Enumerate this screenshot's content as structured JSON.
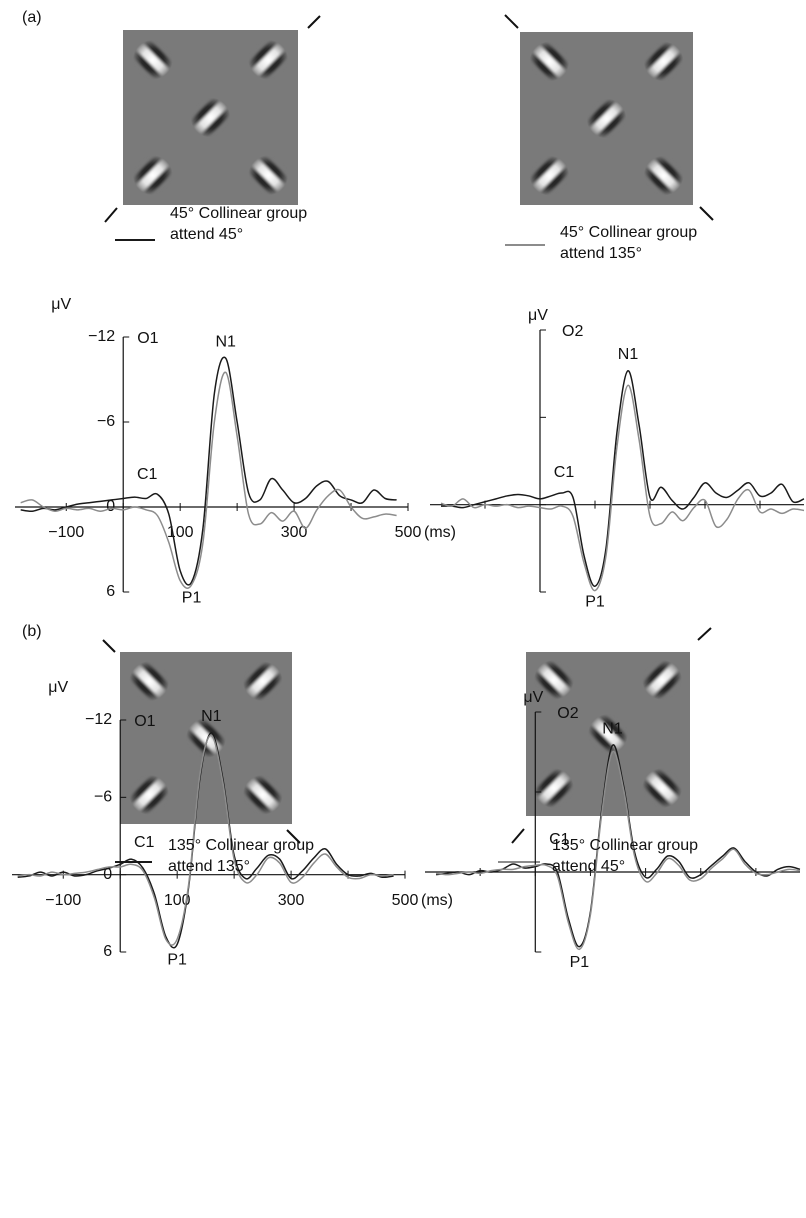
{
  "panel_labels": [
    "(a)",
    "(b)"
  ],
  "chart_data": [
    {
      "type": "line",
      "y_label": "μV",
      "channel": "O1",
      "annotations": [
        "N1",
        "C1",
        "P1"
      ],
      "x_label": "(ms)",
      "x": [
        -180,
        -160,
        -140,
        -120,
        -100,
        -80,
        -60,
        -40,
        -20,
        0,
        20,
        40,
        60,
        80,
        100,
        120,
        140,
        160,
        180,
        200,
        220,
        240,
        260,
        280,
        300,
        320,
        340,
        360,
        380,
        400,
        420,
        440,
        460,
        480
      ],
      "xlim": [
        -190,
        500
      ],
      "xticks": [
        {
          "value": -100,
          "label": "−100"
        },
        100,
        300,
        500
      ],
      "xtick_marks": [
        -100,
        0,
        100,
        200,
        300,
        400,
        500
      ],
      "ylim": [
        6,
        -12
      ],
      "yticks": [
        {
          "value": -12,
          "label": "−12"
        },
        {
          "value": -6,
          "label": "−6"
        },
        0,
        6
      ],
      "series": [
        {
          "name": "45° Collinear group\nattend 45°",
          "color": "#1a1a1a",
          "values": [
            0.2,
            0.3,
            0.1,
            0.2,
            0.0,
            -0.2,
            -0.3,
            -0.4,
            -0.5,
            -0.6,
            -0.7,
            -0.6,
            -0.9,
            0.5,
            4.5,
            5.3,
            1.5,
            -8,
            -10.5,
            -6,
            -1,
            -0.5,
            -2.0,
            -1.2,
            -0.3,
            -0.6,
            -1.5,
            -1.8,
            -0.8,
            -0.5,
            -0.3,
            -1.2,
            -0.6,
            -0.5
          ]
        },
        {
          "name": "45° Collinear group\nattend 135°",
          "color": "#8c8c8c",
          "values": [
            -0.3,
            -0.5,
            0,
            0.3,
            0.1,
            0.2,
            0.1,
            0.3,
            0.1,
            0.2,
            0,
            0.2,
            0.6,
            2.5,
            5.2,
            5.5,
            2.5,
            -6,
            -9.5,
            -5,
            0.5,
            1.2,
            0.4,
            1.0,
            0.3,
            1.5,
            0.2,
            -0.8,
            -1.2,
            0,
            0.8,
            0.7,
            0.5,
            0.6
          ]
        }
      ]
    },
    {
      "type": "line",
      "y_label": "μV",
      "channel": "O2",
      "annotations": [
        "N1",
        "C1",
        "P1"
      ],
      "x": [
        -180,
        -160,
        -140,
        -120,
        -100,
        -80,
        -60,
        -40,
        -20,
        0,
        20,
        40,
        60,
        80,
        100,
        120,
        140,
        160,
        180,
        200,
        220,
        240,
        260,
        280,
        300,
        320,
        340,
        360,
        380,
        400,
        420,
        440,
        460,
        480
      ],
      "xlim": [
        -200,
        480
      ],
      "xtick_marks": [
        -100,
        0,
        100,
        200,
        300,
        400
      ],
      "ylim": [
        6,
        -12
      ],
      "ytick_marks": [
        -12,
        -6,
        0,
        6
      ],
      "series": [
        {
          "color": "#1a1a1a",
          "values": [
            0.1,
            0.1,
            0.2,
            0,
            -0.2,
            -0.4,
            -0.6,
            -0.7,
            -0.6,
            -0.4,
            -0.6,
            -0.8,
            -0.5,
            3.5,
            5.6,
            3.0,
            -5,
            -9.2,
            -5.5,
            -0.5,
            -1.2,
            -0.3,
            0.3,
            -0.5,
            -1.5,
            -0.8,
            -0.5,
            -1.0,
            -1.5,
            -0.6,
            -0.8,
            -1.4,
            -0.2,
            -0.4
          ]
        },
        {
          "color": "#8c8c8c",
          "values": [
            -0.1,
            0.1,
            -0.4,
            0.2,
            0,
            0.1,
            0,
            0.2,
            0.1,
            0.2,
            0.3,
            0.1,
            0.8,
            4.0,
            5.9,
            3.5,
            -4,
            -8.2,
            -4.5,
            0.8,
            1.3,
            0.5,
            1.1,
            0.2,
            -0.3,
            1.5,
            1.0,
            -0.4,
            -1.0,
            0.5,
            0.3,
            0.6,
            0.3,
            0.4
          ]
        }
      ]
    },
    {
      "type": "line",
      "y_label": "μV",
      "channel": "O1",
      "annotations": [
        "N1",
        "C1",
        "P1"
      ],
      "x_label": "(ms)",
      "x": [
        -180,
        -160,
        -140,
        -120,
        -100,
        -80,
        -60,
        -40,
        -20,
        0,
        20,
        40,
        60,
        80,
        100,
        120,
        140,
        160,
        180,
        200,
        220,
        240,
        260,
        280,
        300,
        320,
        340,
        360,
        380,
        400,
        420,
        440,
        460,
        480
      ],
      "xlim": [
        -190,
        500
      ],
      "xticks": [
        {
          "value": -100,
          "label": "−100"
        },
        100,
        300,
        500
      ],
      "xtick_marks": [
        -100,
        0,
        100,
        200,
        300,
        400,
        500
      ],
      "ylim": [
        6,
        -12
      ],
      "yticks": [
        {
          "value": -12,
          "label": "−12"
        },
        {
          "value": -6,
          "label": "−6"
        },
        0,
        6
      ],
      "series": [
        {
          "name": "135° Collinear group\nattend 135°",
          "color": "#1a1a1a",
          "values": [
            0.2,
            0.1,
            -0.2,
            0.1,
            -0.2,
            0.1,
            0,
            -0.3,
            -0.5,
            -0.8,
            -1.2,
            -0.5,
            1.5,
            4.8,
            5.4,
            1.0,
            -7.5,
            -11,
            -7.5,
            -1.5,
            0.3,
            -0.5,
            -1.5,
            -1.2,
            0.3,
            -0.3,
            -1.3,
            -2.0,
            -0.8,
            0,
            0.1,
            -0.1,
            0.2,
            0.1
          ]
        },
        {
          "name": "135° Collinear group\nattend 45°",
          "color": "#8c8c8c",
          "values": [
            0.1,
            0,
            0.1,
            -0.2,
            0,
            -0.1,
            -0.2,
            -0.4,
            -0.6,
            -0.6,
            -0.8,
            -0.3,
            1.8,
            5.0,
            5.0,
            0.8,
            -7.8,
            -10.8,
            -7.2,
            -1.2,
            0.6,
            0.0,
            -1.3,
            -0.9,
            0.6,
            0.2,
            -0.9,
            -1.6,
            -0.6,
            0.2,
            0.3,
            0,
            0.1,
            0
          ]
        }
      ]
    },
    {
      "type": "line",
      "y_label": "μV",
      "channel": "O2",
      "annotations": [
        "N1",
        "C1",
        "P1"
      ],
      "x": [
        -180,
        -160,
        -140,
        -120,
        -100,
        -80,
        -60,
        -40,
        -20,
        0,
        20,
        40,
        60,
        80,
        100,
        120,
        140,
        160,
        180,
        200,
        220,
        240,
        260,
        280,
        300,
        320,
        340,
        360,
        380,
        400,
        420,
        440,
        460,
        480
      ],
      "xlim": [
        -200,
        480
      ],
      "xtick_marks": [
        -100,
        0,
        100,
        200,
        300,
        400
      ],
      "ylim": [
        6,
        -12
      ],
      "ytick_marks": [
        -12,
        -6,
        0,
        6
      ],
      "series": [
        {
          "color": "#1a1a1a",
          "values": [
            0.2,
            0.1,
            0,
            0.2,
            -0.1,
            0,
            -0.2,
            -0.6,
            -0.3,
            -0.4,
            -0.6,
            0,
            3.5,
            5.6,
            3.0,
            -4.5,
            -9.5,
            -6.5,
            -1.5,
            0.4,
            -0.2,
            -1.2,
            -0.8,
            0.4,
            0.2,
            -0.5,
            -1.2,
            -1.8,
            -0.8,
            0,
            0.3,
            -0.2,
            -0.4,
            -0.2
          ]
        },
        {
          "color": "#8c8c8c",
          "values": [
            0.1,
            0.2,
            0.1,
            0,
            0.1,
            -0.1,
            -0.2,
            -0.2,
            -0.4,
            -0.5,
            -0.5,
            0.3,
            3.8,
            5.8,
            3.2,
            -4.2,
            -9.0,
            -6.2,
            -1.2,
            0.7,
            0.1,
            -1.0,
            -0.5,
            0.6,
            0.5,
            -0.3,
            -1.0,
            -1.7,
            -0.6,
            0.1,
            0.2,
            0,
            -0.2,
            -0.1
          ]
        }
      ]
    }
  ]
}
